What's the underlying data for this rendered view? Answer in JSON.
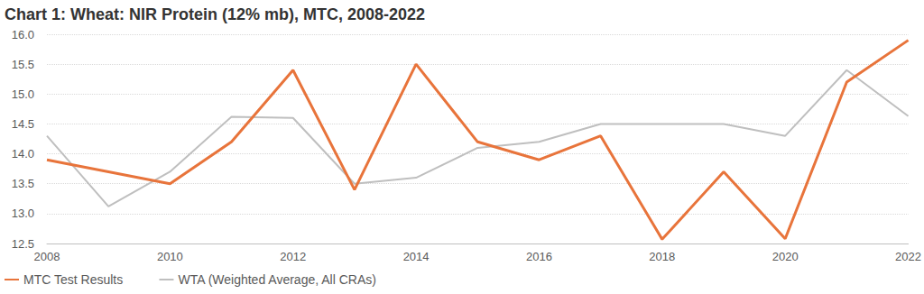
{
  "chart_data": {
    "type": "line",
    "title": "Chart 1: Wheat: NIR Protein (12% mb), MTC, 2008-2022",
    "x": [
      2008,
      2009,
      2010,
      2011,
      2012,
      2013,
      2014,
      2015,
      2016,
      2017,
      2018,
      2019,
      2020,
      2021,
      2022
    ],
    "series": [
      {
        "name": "MTC Test Results",
        "color": "#E8743B",
        "line_style": "solid",
        "values": [
          13.9,
          13.7,
          13.5,
          14.2,
          15.4,
          13.4,
          15.5,
          14.2,
          13.9,
          14.3,
          12.57,
          13.7,
          12.58,
          15.2,
          15.9
        ]
      },
      {
        "name": "WTA (Weighted Average, All CRAs)",
        "color": "#BFBFBF",
        "line_style": "solid",
        "values": [
          14.3,
          13.12,
          13.7,
          14.62,
          14.6,
          13.5,
          13.6,
          14.1,
          14.2,
          14.5,
          14.5,
          14.5,
          14.3,
          15.4,
          14.63
        ]
      }
    ],
    "xlim": [
      2008,
      2022
    ],
    "xticks": [
      2008,
      2010,
      2012,
      2014,
      2016,
      2018,
      2020,
      2022
    ],
    "ylim": [
      12.5,
      16
    ],
    "yticks": [
      12.5,
      {
        "value": 13,
        "label": "13.0"
      },
      13.5,
      {
        "value": 14,
        "label": "14.0"
      },
      14.5,
      {
        "value": 15,
        "label": "15.0"
      },
      15.5,
      {
        "value": 16,
        "label": "16.0"
      }
    ],
    "grid": true,
    "legend": "bottom-left",
    "marker": "none"
  }
}
